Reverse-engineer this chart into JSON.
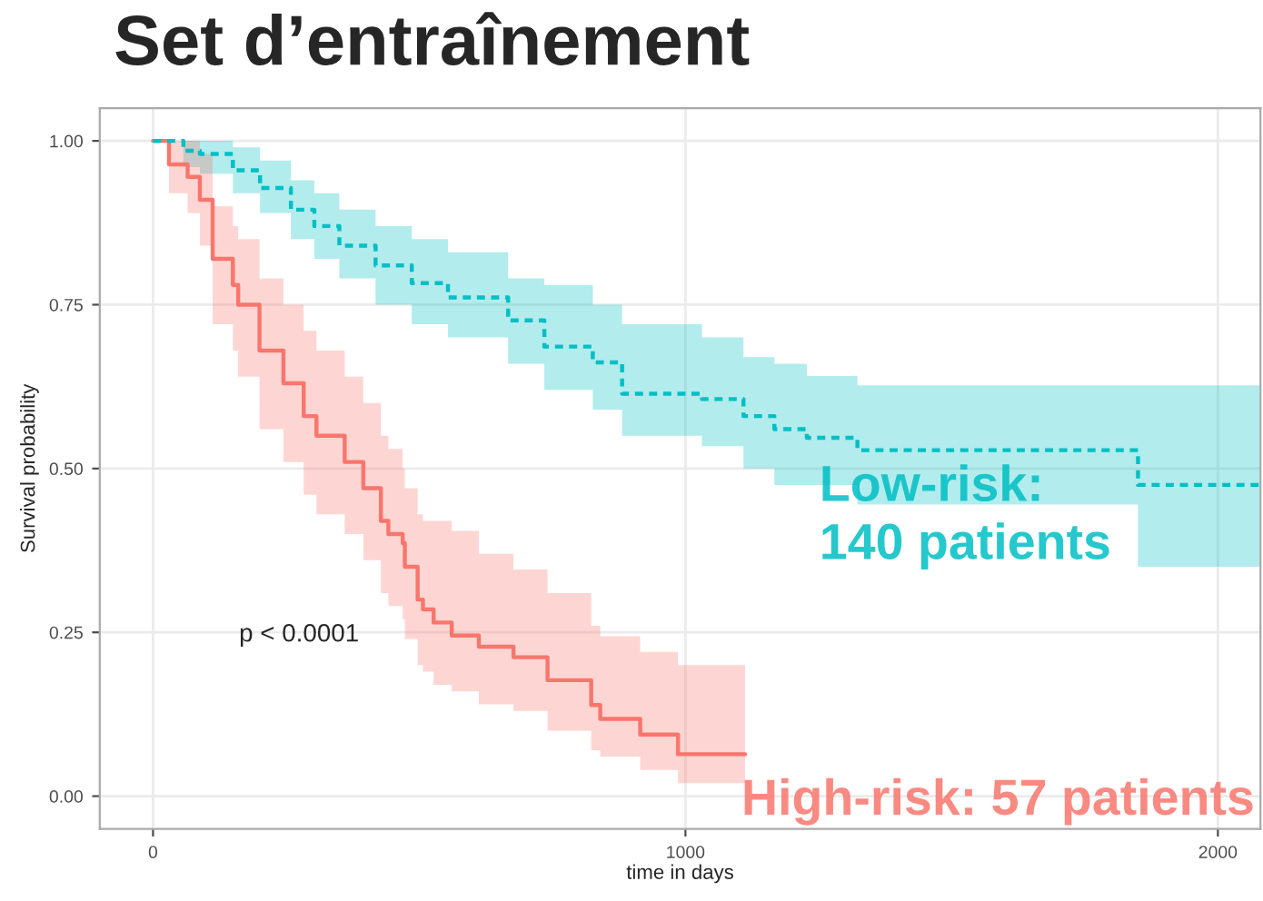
{
  "chart_data": {
    "type": "step",
    "title": "Set d’entraînement",
    "xlabel": "time in days",
    "ylabel": "Survival probability",
    "annotations": [
      "p < 0.0001"
    ],
    "xlim": [
      -100,
      2080
    ],
    "ylim": [
      -0.05,
      1.05
    ],
    "xticks": [
      0,
      1000,
      2000
    ],
    "yticks": [
      {
        "value": 0,
        "label": "0.00"
      },
      {
        "value": 0.25,
        "label": "0.25"
      },
      {
        "value": 0.5,
        "label": "0.50"
      },
      {
        "value": 0.75,
        "label": "0.75"
      },
      {
        "value": 1,
        "label": "1.00"
      }
    ],
    "grid": true,
    "series": [
      {
        "name": "Low-risk:\n140 patients",
        "color": "#00bfc4",
        "line_style": "dashed",
        "x": [
          0,
          57,
          88,
          150,
          201,
          259,
          303,
          350,
          418,
          486,
          554,
          667,
          735,
          826,
          881,
          1031,
          1109,
          1167,
          1228,
          1323,
          1850,
          2078
        ],
        "values": [
          1,
          0.985,
          0.98,
          0.955,
          0.928,
          0.895,
          0.87,
          0.84,
          0.81,
          0.783,
          0.761,
          0.726,
          0.686,
          0.662,
          0.614,
          0.606,
          0.58,
          0.56,
          0.547,
          0.528,
          0.475,
          0.475
        ],
        "lower": [
          1,
          0.96,
          0.95,
          0.92,
          0.89,
          0.85,
          0.82,
          0.79,
          0.75,
          0.72,
          0.7,
          0.66,
          0.62,
          0.59,
          0.55,
          0.534,
          0.5,
          0.475,
          0.475,
          0.445,
          0.35,
          0.35
        ],
        "upper": [
          1,
          1,
          1,
          0.99,
          0.97,
          0.94,
          0.92,
          0.895,
          0.87,
          0.85,
          0.83,
          0.79,
          0.78,
          0.75,
          0.72,
          0.7,
          0.67,
          0.66,
          0.641,
          0.627,
          0.627,
          0.627
        ]
      },
      {
        "name": "High-risk: 57 patients",
        "color": "#f8766d",
        "line_style": "solid",
        "x": [
          0,
          30,
          65,
          88,
          112,
          150,
          160,
          200,
          245,
          283,
          307,
          360,
          395,
          428,
          442,
          469,
          473,
          497,
          507,
          527,
          561,
          612,
          677,
          741,
          823,
          840,
          915,
          986,
          1112
        ],
        "values": [
          1,
          0.964,
          0.945,
          0.91,
          0.82,
          0.78,
          0.75,
          0.68,
          0.63,
          0.58,
          0.55,
          0.51,
          0.47,
          0.42,
          0.4,
          0.386,
          0.35,
          0.3,
          0.285,
          0.265,
          0.245,
          0.228,
          0.212,
          0.177,
          0.139,
          0.118,
          0.094,
          0.064,
          0.064
        ],
        "lower": [
          1,
          0.92,
          0.89,
          0.84,
          0.72,
          0.68,
          0.64,
          0.56,
          0.51,
          0.46,
          0.43,
          0.4,
          0.36,
          0.31,
          0.29,
          0.27,
          0.24,
          0.2,
          0.19,
          0.17,
          0.16,
          0.14,
          0.13,
          0.1,
          0.07,
          0.06,
          0.04,
          0.02,
          0.02
        ],
        "upper": [
          1,
          1,
          1,
          0.98,
          0.9,
          0.87,
          0.85,
          0.79,
          0.75,
          0.71,
          0.68,
          0.64,
          0.6,
          0.55,
          0.53,
          0.5,
          0.47,
          0.43,
          0.42,
          0.42,
          0.405,
          0.37,
          0.346,
          0.31,
          0.26,
          0.244,
          0.22,
          0.2,
          0.2
        ]
      }
    ]
  }
}
